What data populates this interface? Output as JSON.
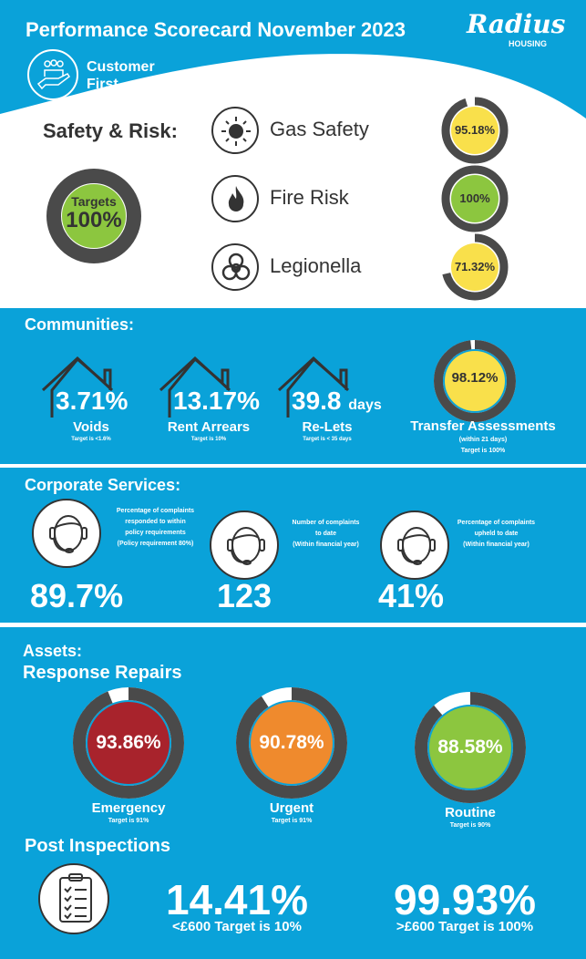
{
  "header": {
    "title": "Performance Scorecard November 2023",
    "logo": "Radius",
    "logo_sub": "HOUSING",
    "theme_line1": "Customer",
    "theme_line2": "First"
  },
  "colors": {
    "blue": "#0aa2d9",
    "ring": "#4a4a4a",
    "green": "#8cc63f",
    "yellow": "#f9e04b",
    "red": "#a8232c",
    "orange": "#ef8a2d"
  },
  "safety": {
    "title": "Safety & Risk:",
    "targets_label": "Targets",
    "targets_value": "100%",
    "targets_fraction": 1.0,
    "items": [
      {
        "label": "Gas Safety",
        "value": "95.18%",
        "fraction": 0.9518,
        "color": "#f9e04b",
        "icon": "sun-icon"
      },
      {
        "label": "Fire Risk",
        "value": "100%",
        "fraction": 1.0,
        "color": "#8cc63f",
        "icon": "flame-icon"
      },
      {
        "label": "Legionella",
        "value": "71.32%",
        "fraction": 0.7132,
        "color": "#f9e04b",
        "icon": "biohazard-icon"
      }
    ]
  },
  "communities": {
    "title": "Communities:",
    "items": [
      {
        "value": "3.71%",
        "unit": "",
        "label": "Voids",
        "target": "Target is <1.6%"
      },
      {
        "value": "13.17%",
        "unit": "",
        "label": "Rent Arrears",
        "target": "Target is 10%"
      },
      {
        "value": "39.8",
        "unit": "days",
        "label": "Re-Lets",
        "target": "Target is < 35 days"
      }
    ],
    "transfer": {
      "value": "98.12%",
      "fraction": 0.9812,
      "label": "Transfer Assessments",
      "sub": "(within 21 days)",
      "target": "Target is 100%"
    }
  },
  "corporate": {
    "title": "Corporate Services:",
    "items": [
      {
        "value": "89.7%",
        "desc": [
          "Percentage of complaints",
          "responded to within",
          "policy requirements",
          "(Policy requirement 80%)"
        ]
      },
      {
        "value": "123",
        "desc": [
          "Number of complaints",
          "to date",
          "(Within financial year)"
        ]
      },
      {
        "value": "41%",
        "desc": [
          "Percentage of complaints",
          "upheld to date",
          "(Within financial year)"
        ]
      }
    ]
  },
  "assets": {
    "title": "Assets:",
    "subtitle": "Response Repairs",
    "repairs": [
      {
        "value": "93.86%",
        "fraction": 0.9386,
        "label": "Emergency",
        "target": "Target is 91%",
        "color": "#a8232c"
      },
      {
        "value": "90.78%",
        "fraction": 0.9078,
        "label": "Urgent",
        "target": "Target is 91%",
        "color": "#ef8a2d"
      },
      {
        "value": "88.58%",
        "fraction": 0.8858,
        "label": "Routine",
        "target": "Target is 90%",
        "color": "#8cc63f"
      }
    ],
    "post_title": "Post Inspections",
    "post": [
      {
        "value": "14.41%",
        "label": "<£600 Target is 10%"
      },
      {
        "value": "99.93%",
        "label": ">£600 Target is 100%"
      }
    ]
  }
}
